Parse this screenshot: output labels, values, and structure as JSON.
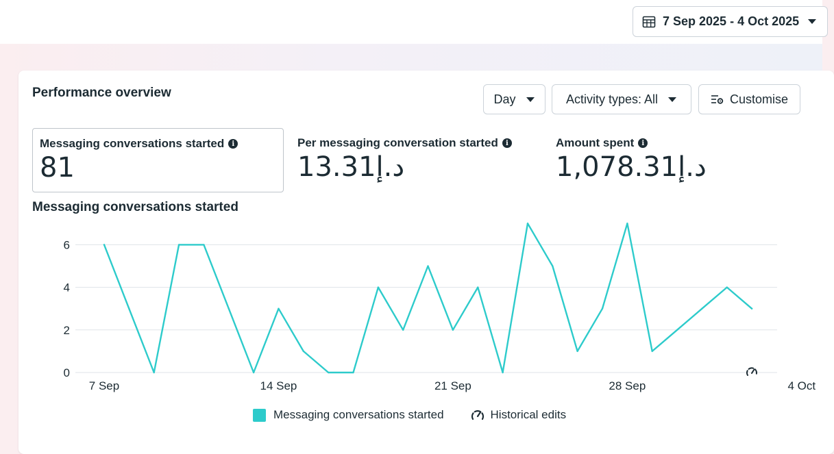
{
  "date_range": {
    "label": "7 Sep 2025 - 4 Oct 2025"
  },
  "card": {
    "title": "Performance overview",
    "controls": {
      "day_label": "Day",
      "activity_label": "Activity types: All",
      "customise_label": "Customise"
    },
    "metrics": [
      {
        "label": "Messaging conversations started",
        "value": "81"
      },
      {
        "label": "Per messaging conversation started",
        "value": "13.31د.إ"
      },
      {
        "label": "Amount spent",
        "value": "1,078.31د.إ"
      }
    ],
    "chart_title": "Messaging conversations started"
  },
  "chart_data": {
    "type": "line",
    "title": "Messaging conversations started",
    "x": [
      "7 Sep",
      "8 Sep",
      "9 Sep",
      "10 Sep",
      "11 Sep",
      "12 Sep",
      "13 Sep",
      "14 Sep",
      "15 Sep",
      "16 Sep",
      "17 Sep",
      "18 Sep",
      "19 Sep",
      "20 Sep",
      "21 Sep",
      "22 Sep",
      "23 Sep",
      "24 Sep",
      "25 Sep",
      "26 Sep",
      "27 Sep",
      "28 Sep",
      "29 Sep",
      "30 Sep",
      "1 Oct",
      "2 Oct",
      "3 Oct"
    ],
    "x_tick_labels": [
      "7 Sep",
      "14 Sep",
      "21 Sep",
      "28 Sep",
      "4 Oct"
    ],
    "y_tick_labels": [
      "0",
      "2",
      "4",
      "6"
    ],
    "ylim": [
      0,
      7.3
    ],
    "grid": true,
    "series": [
      {
        "name": "Messaging conversations started",
        "color": "#2dcbcb",
        "values": [
          6,
          3,
          0,
          6,
          6,
          3,
          0,
          3,
          1,
          0,
          0,
          4,
          2,
          5,
          2,
          4,
          0,
          7,
          5,
          1,
          3,
          7,
          1,
          2,
          3,
          4,
          3
        ]
      }
    ],
    "legend": [
      {
        "label": "Messaging conversations started",
        "icon": "teal-square"
      },
      {
        "label": "Historical edits",
        "icon": "gauge-icon"
      }
    ],
    "legend_position": "bottom"
  }
}
